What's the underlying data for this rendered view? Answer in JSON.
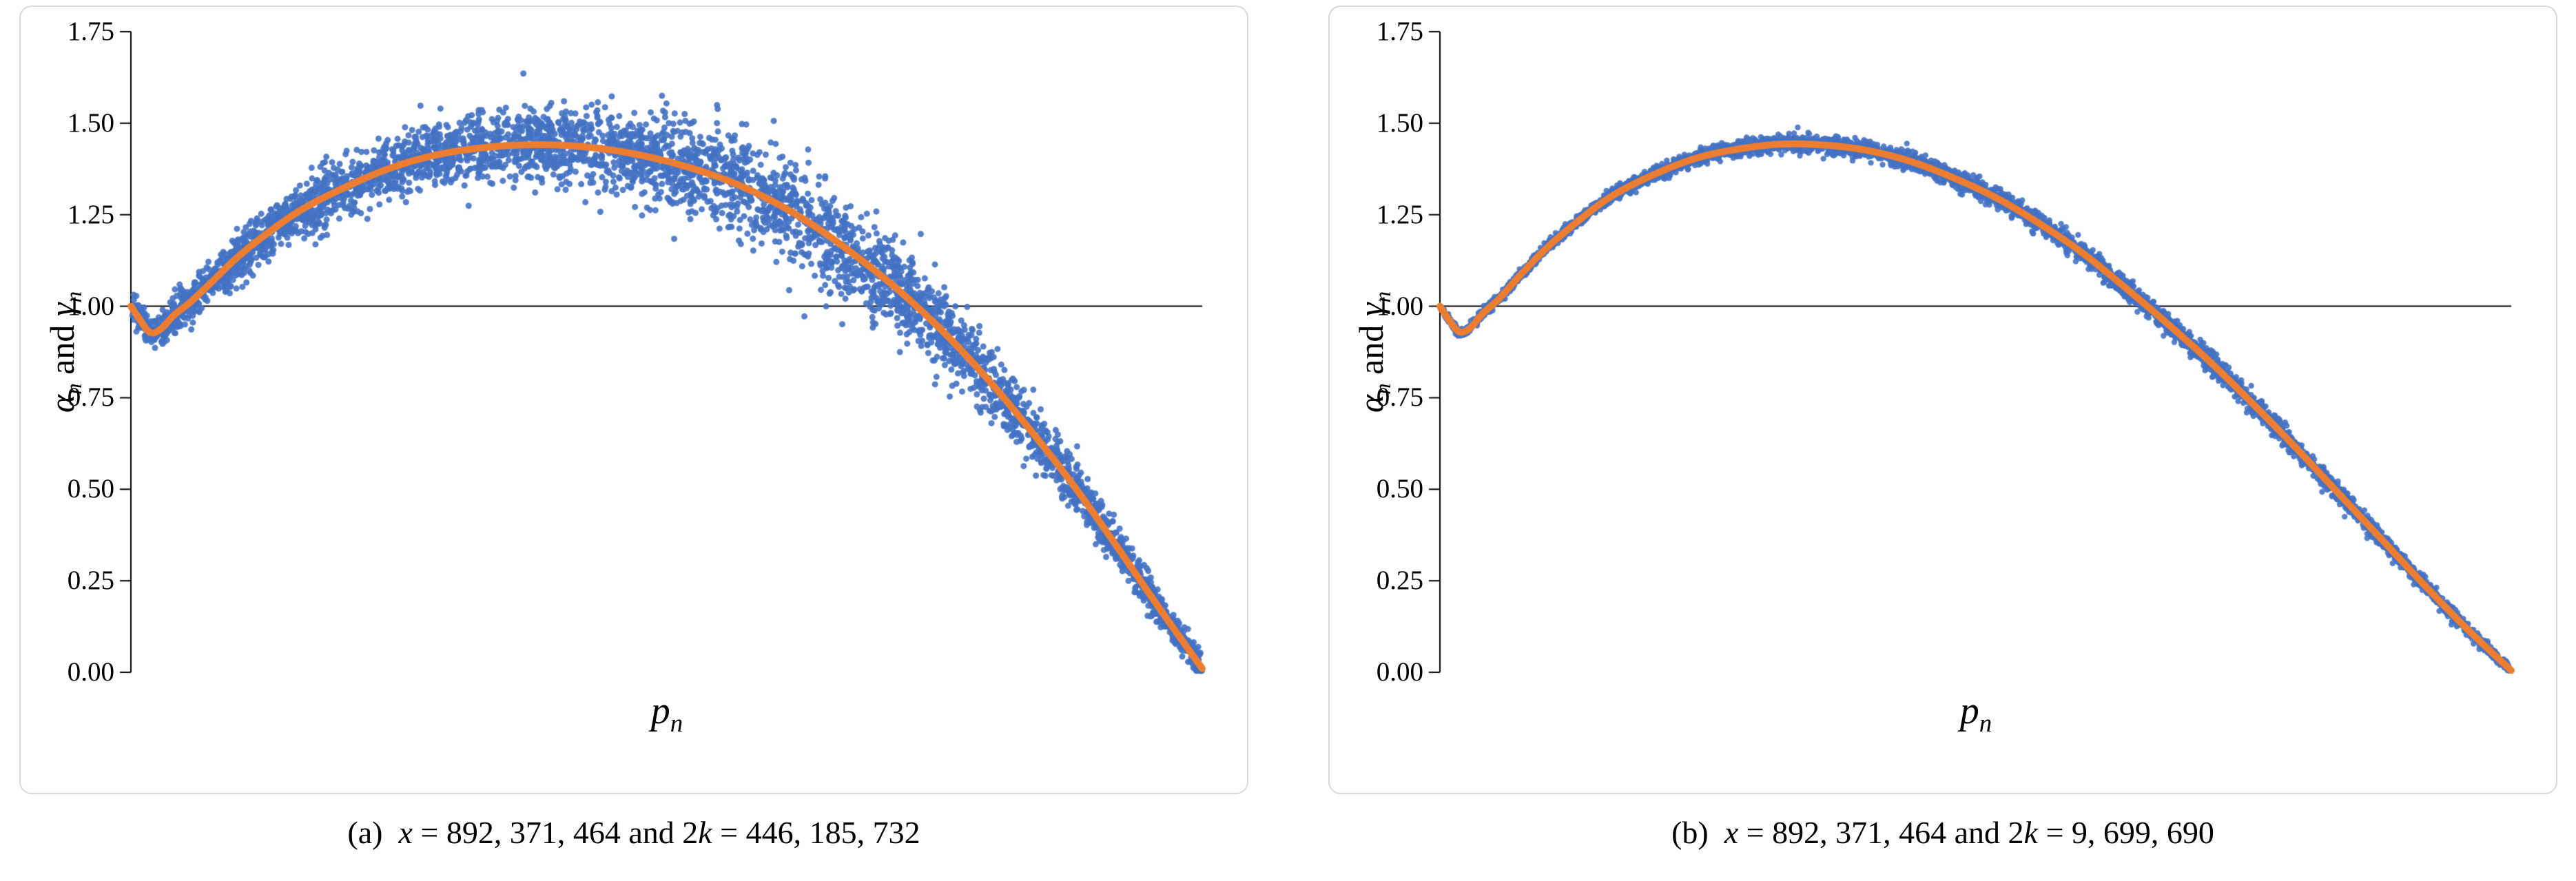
{
  "figure": {
    "background": "#ffffff",
    "panel_border_color": "#d9d9d9",
    "axis_color": "#000000",
    "reference_line_color": "#000000"
  },
  "panels": [
    {
      "id": "a",
      "ylabel": {
        "alpha": "α",
        "sub1": "n",
        "mid": " and ",
        "gamma": "γ",
        "sub2": "n"
      },
      "xlabel": {
        "p": "p",
        "sub": "n"
      },
      "yticks": [
        "0.00",
        "0.25",
        "0.50",
        "0.75",
        "1.00",
        "1.25",
        "1.50",
        "1.75"
      ],
      "caption": {
        "tag": "(a)",
        "v1": "x",
        "t1": " = 892, 371, 464 and 2",
        "v2": "k",
        "t2": " = 446, 185, 732"
      }
    },
    {
      "id": "b",
      "ylabel": {
        "alpha": "α",
        "sub1": "n",
        "mid": " and ",
        "gamma": "γ",
        "sub2": "n"
      },
      "xlabel": {
        "p": "p",
        "sub": "n"
      },
      "yticks": [
        "0.00",
        "0.25",
        "0.50",
        "0.75",
        "1.00",
        "1.25",
        "1.50",
        "1.75"
      ],
      "caption": {
        "tag": "(b)",
        "v1": "x",
        "t1": " = 892, 371, 464 and 2",
        "v2": "k",
        "t2": " = 9, 699, 690"
      }
    }
  ],
  "chart_data": [
    {
      "type": "scatter",
      "caption": "(a) x = 892,371,464 and 2k = 446,185,732",
      "xlabel": "p_n",
      "ylabel": "alpha_n and gamma_n",
      "ylim": [
        0,
        1.75
      ],
      "ytick_values": [
        0,
        0.25,
        0.5,
        0.75,
        1.0,
        1.25,
        1.5,
        1.75
      ],
      "reference_line_y": 1.0,
      "grid": false,
      "legend": false,
      "series": [
        {
          "name": "alpha_n scatter",
          "role": "points",
          "color": "#4472C4"
        },
        {
          "name": "gamma_n smooth curve",
          "role": "curve",
          "color": "#ED7D31"
        }
      ],
      "curve_x": [
        0,
        0.008,
        0.018,
        0.028,
        0.04,
        0.055,
        0.075,
        0.1,
        0.13,
        0.16,
        0.2,
        0.24,
        0.28,
        0.32,
        0.36,
        0.4,
        0.44,
        0.48,
        0.52,
        0.56,
        0.6,
        0.64,
        0.68,
        0.72,
        0.76,
        0.8,
        0.84,
        0.88,
        0.92,
        0.96,
        1.0
      ],
      "curve_y": [
        1.0,
        0.965,
        0.928,
        0.938,
        0.975,
        1.01,
        1.065,
        1.135,
        1.205,
        1.265,
        1.325,
        1.375,
        1.41,
        1.43,
        1.44,
        1.44,
        1.43,
        1.41,
        1.38,
        1.34,
        1.285,
        1.215,
        1.13,
        1.035,
        0.925,
        0.8,
        0.66,
        0.51,
        0.345,
        0.175,
        0.01
      ],
      "scatter": {
        "n": 4500,
        "seed": 11,
        "radius": 4.5,
        "noise_base": 0.05,
        "noise_bump": {
          "amp": 0.022,
          "center": 0.63,
          "sigma": 0.12
        }
      }
    },
    {
      "type": "scatter",
      "caption": "(b) x = 892,371,464 and 2k = 9,699,690",
      "xlabel": "p_n",
      "ylabel": "alpha_n and gamma_n",
      "ylim": [
        0,
        1.75
      ],
      "ytick_values": [
        0,
        0.25,
        0.5,
        0.75,
        1.0,
        1.25,
        1.5,
        1.75
      ],
      "reference_line_y": 1.0,
      "grid": false,
      "legend": false,
      "series": [
        {
          "name": "alpha_n scatter",
          "role": "points",
          "color": "#4472C4"
        },
        {
          "name": "gamma_n smooth curve",
          "role": "curve",
          "color": "#ED7D31"
        }
      ],
      "curve_x": [
        0,
        0.008,
        0.018,
        0.028,
        0.04,
        0.055,
        0.075,
        0.1,
        0.13,
        0.16,
        0.2,
        0.24,
        0.28,
        0.32,
        0.36,
        0.4,
        0.44,
        0.48,
        0.52,
        0.56,
        0.6,
        0.64,
        0.68,
        0.72,
        0.76,
        0.8,
        0.84,
        0.88,
        0.92,
        0.96,
        1.0
      ],
      "curve_y": [
        1.0,
        0.965,
        0.93,
        0.94,
        0.98,
        1.02,
        1.085,
        1.16,
        1.235,
        1.3,
        1.36,
        1.405,
        1.43,
        1.443,
        1.44,
        1.425,
        1.395,
        1.35,
        1.295,
        1.225,
        1.145,
        1.05,
        0.95,
        0.845,
        0.73,
        0.61,
        0.485,
        0.36,
        0.235,
        0.115,
        0.005
      ],
      "scatter": {
        "n": 5200,
        "seed": 23,
        "radius": 4.2,
        "noise_base": 0.012,
        "noise_bump": {
          "amp": 0.004,
          "center": 0.8,
          "sigma": 0.15
        }
      }
    }
  ]
}
